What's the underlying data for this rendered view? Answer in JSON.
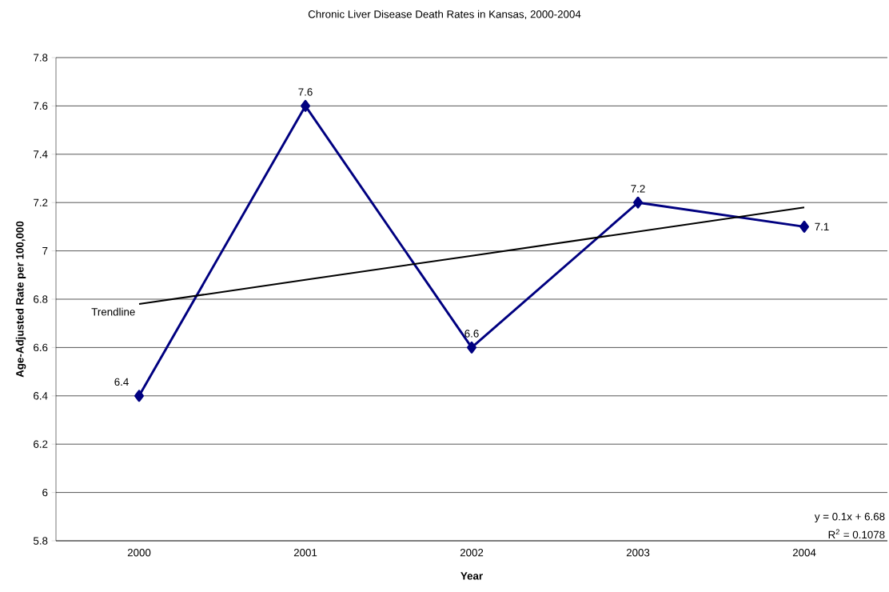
{
  "chart_data": {
    "type": "line",
    "title": "Chronic Liver Disease Death Rates in Kansas, 2000-2004",
    "xlabel": "Year",
    "ylabel": "Age-Adjusted Rate per 100,000",
    "categories": [
      "2000",
      "2001",
      "2002",
      "2003",
      "2004"
    ],
    "series": [
      {
        "color": "#000080",
        "values": [
          6.4,
          7.6,
          6.6,
          7.2,
          7.1
        ],
        "marker": "diamond",
        "data_labels": true
      },
      {
        "name": "Trendline",
        "type": "line",
        "color": "#000000",
        "values": [
          6.78,
          6.88,
          6.98,
          7.08,
          7.18
        ],
        "marker": "none"
      }
    ],
    "ylim": [
      5.8,
      7.8
    ],
    "yticks": [
      5.8,
      6,
      6.2,
      6.4,
      6.6,
      6.8,
      7,
      7.2,
      7.4,
      7.6,
      7.8
    ],
    "grid": "y",
    "line_style": "solid",
    "annotations": [
      "y = 0.1x + 6.68",
      "R$^{2}$ = 0.1078"
    ]
  }
}
